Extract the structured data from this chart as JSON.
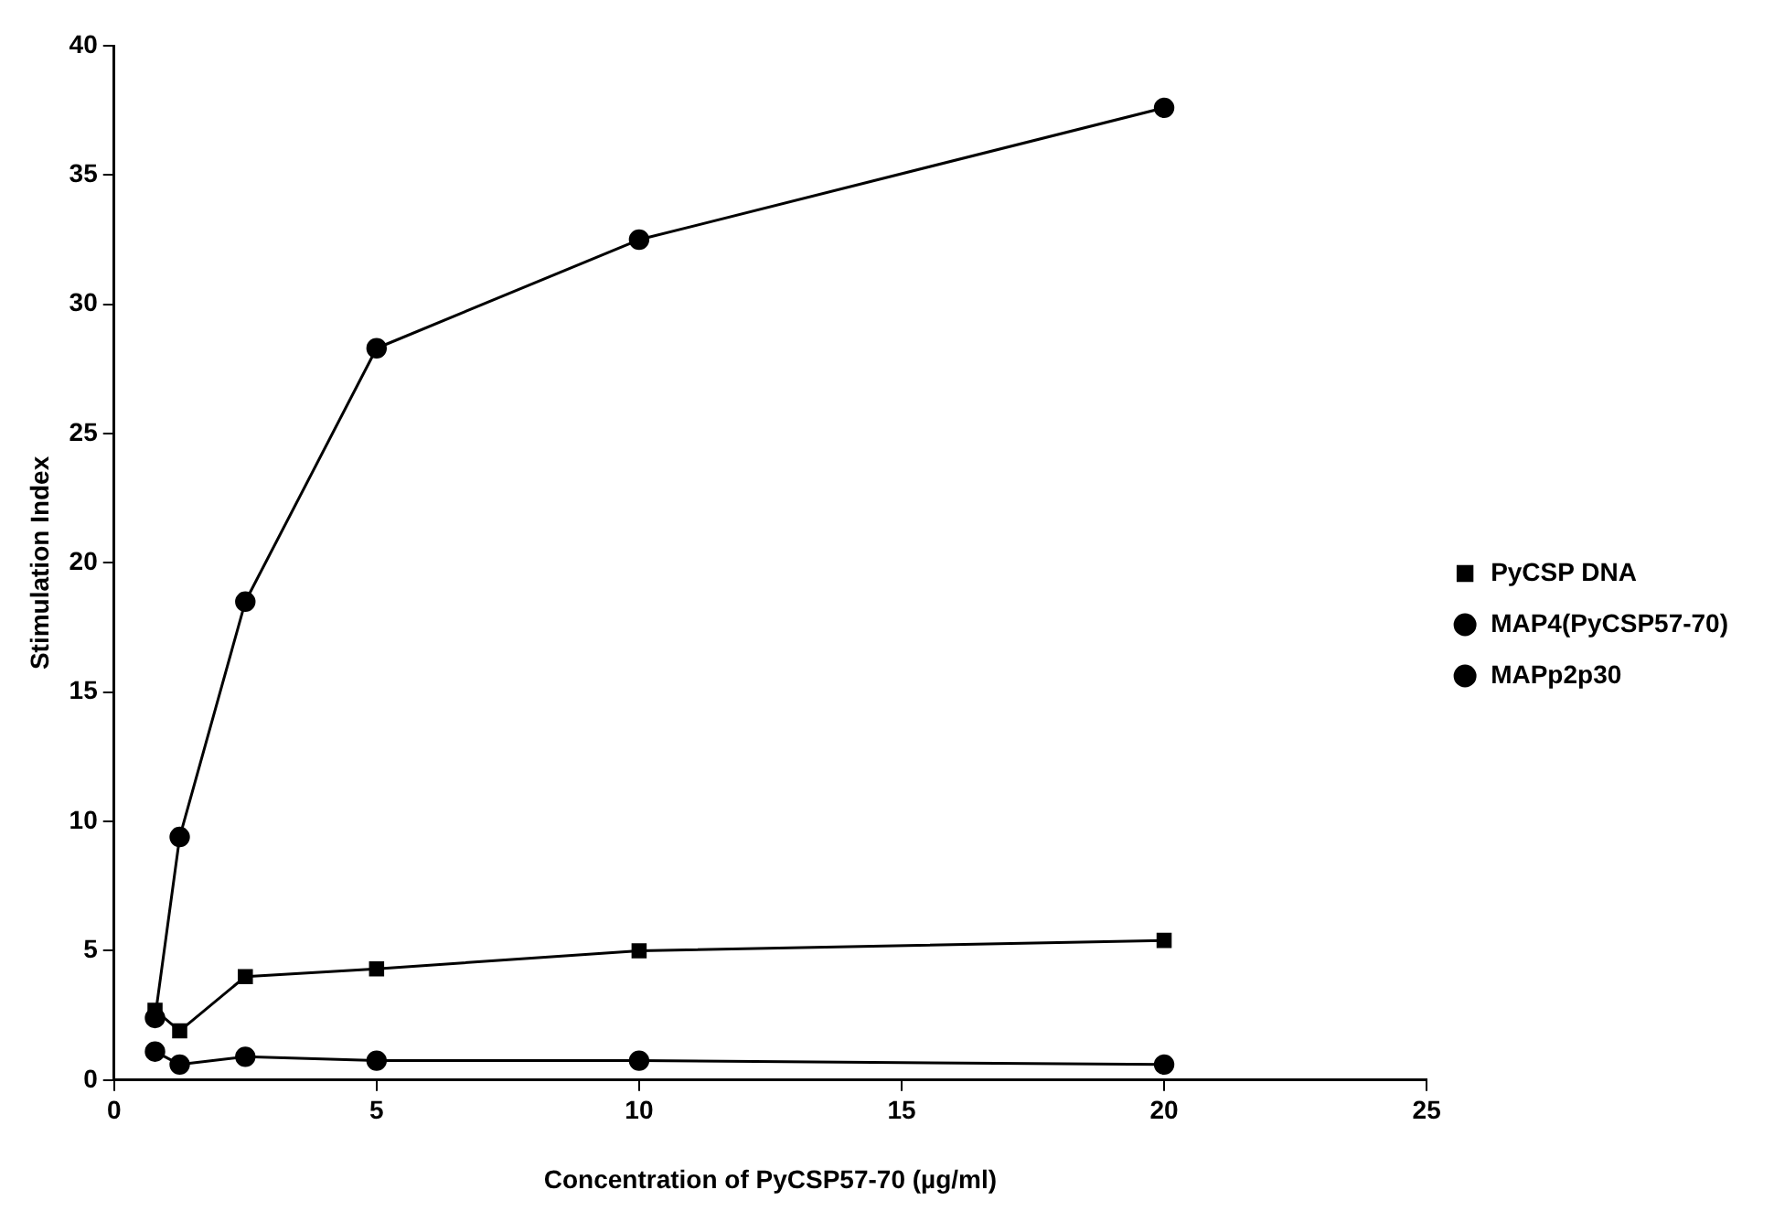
{
  "chart_data": {
    "type": "line",
    "xlabel": "Concentration of PyCSP57-70 (µg/ml)",
    "ylabel": "Stimulation Index",
    "x": [
      0.78,
      1.25,
      2.5,
      5,
      10,
      20
    ],
    "series": [
      {
        "name": "PyCSP DNA",
        "color": "#000000",
        "marker": "square",
        "values": [
          2.7,
          1.9,
          4.0,
          4.3,
          5.0,
          5.4
        ]
      },
      {
        "name": "MAP4(PyCSP57-70)",
        "color": "#000000",
        "marker": "circle",
        "values": [
          2.4,
          9.4,
          18.5,
          28.3,
          32.5,
          37.6
        ]
      },
      {
        "name": "MAPp2p30",
        "color": "#000000",
        "marker": "circle",
        "values": [
          1.1,
          0.6,
          0.9,
          0.75,
          0.75,
          0.6
        ]
      }
    ],
    "xlim": [
      0,
      25
    ],
    "xticks": [
      0,
      5,
      10,
      15,
      20,
      25
    ],
    "ylim": [
      0,
      40
    ],
    "yticks": [
      0,
      5,
      10,
      15,
      20,
      25,
      30,
      35,
      40
    ],
    "grid": false,
    "legend": "right",
    "line_style": "solid"
  }
}
